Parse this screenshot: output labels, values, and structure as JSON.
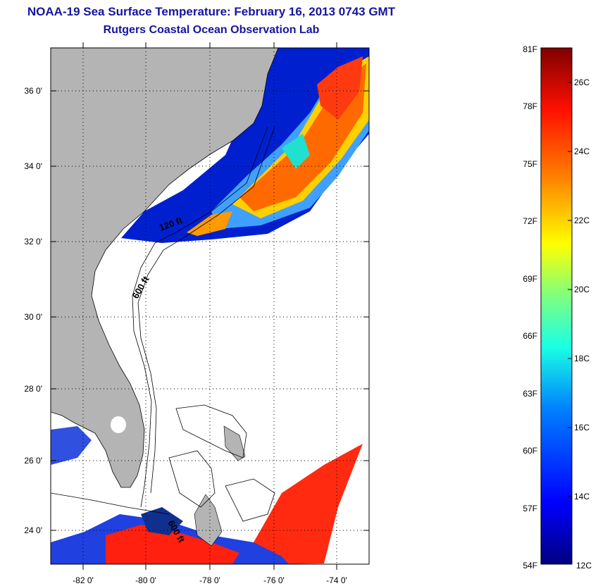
{
  "header": {
    "title": "NOAA-19 Sea Surface Temperature:  February 16, 2013 0743 GMT",
    "subtitle": "Rutgers Coastal Ocean Observation Lab"
  },
  "map": {
    "lat_labels": [
      "36 0'",
      "34 0'",
      "32 0'",
      "30 0'",
      "28 0'",
      "26 0'",
      "24 0'"
    ],
    "lon_labels": [
      "-82 0'",
      "-80 0'",
      "-78 0'",
      "-76 0'",
      "-74 0'"
    ],
    "contour_labels": [
      "120 ft",
      "600 ft",
      "600 ft"
    ],
    "lat_range": [
      23,
      37.3
    ],
    "lon_range": [
      -83,
      -73
    ]
  },
  "colorbar": {
    "f_labels": [
      "81F",
      "78F",
      "75F",
      "72F",
      "69F",
      "66F",
      "63F",
      "60F",
      "57F",
      "54F"
    ],
    "c_labels": [
      "26C",
      "24C",
      "22C",
      "20C",
      "18C",
      "16C",
      "14C",
      "12C"
    ],
    "colors": {
      "land": "#b4b4b4",
      "ocean_empty": "#ffffff",
      "cold": "#00007f",
      "cool": "#0050ff",
      "mid": "#19ffe5",
      "warm": "#ffe500",
      "hot": "#ff2000",
      "hottest": "#7f0000"
    }
  }
}
